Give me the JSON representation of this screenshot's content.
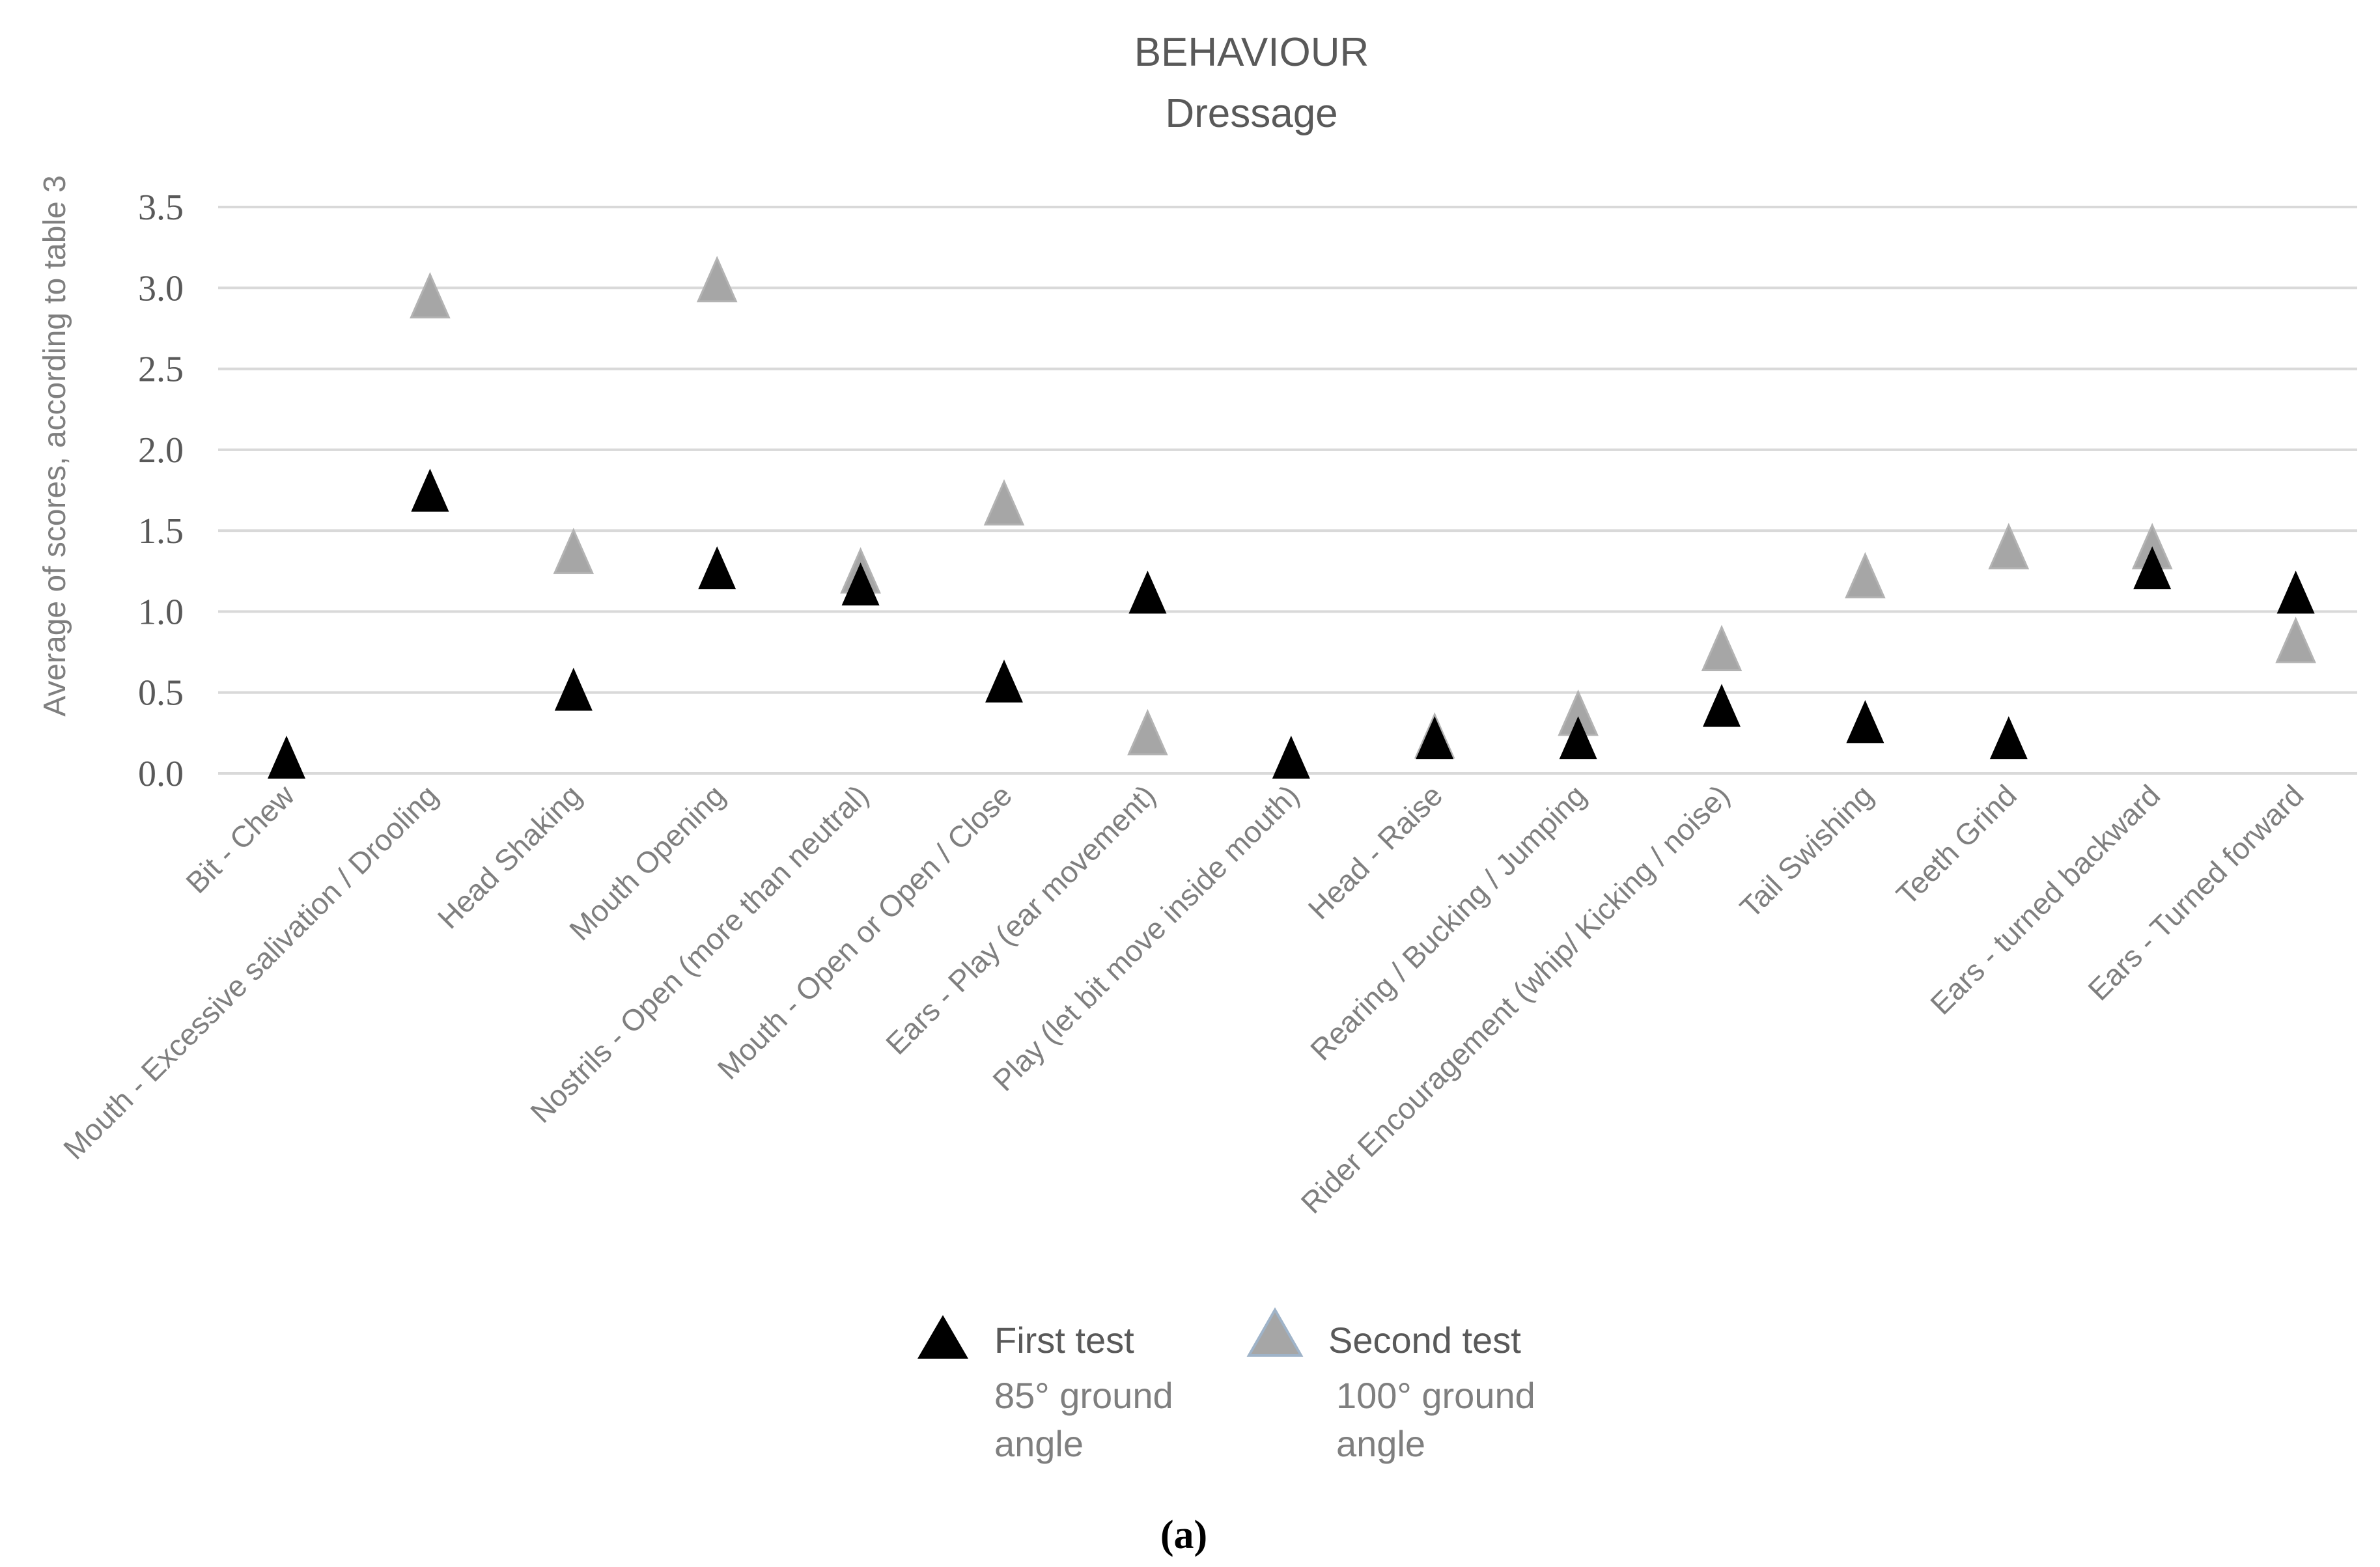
{
  "chart_data": {
    "type": "scatter",
    "title": "BEHAVIOUR",
    "subtitle": "Dressage",
    "ylabel": "Average of scores, according to table 3",
    "xlabel": "",
    "ylim": [
      0,
      3.5
    ],
    "yticks": [
      "0.0",
      "0.5",
      "1.0",
      "1.5",
      "2.0",
      "2.5",
      "3.0",
      "3.5"
    ],
    "grid": true,
    "legend_position": "bottom-center",
    "categories": [
      "Bit - Chew",
      "Mouth - Excessive salivation / Drooling",
      "Head Shaking",
      "Mouth Opening",
      "Nostrils - Open (more than neutral)",
      "Mouth - Open or Open / Close",
      "Ears - Play (ear movement)",
      "Play (let bit move inside mouth)",
      "Head - Raise",
      "Rearing / Bucking / Jumping",
      "Rider Encouragement (whip/ Kicking / noise)",
      "Tail Swishing",
      "Teeth Grind",
      "Ears - turned backward",
      "Ears - Turned forward"
    ],
    "series": [
      {
        "name": "First test",
        "note": "85° ground angle",
        "note_line1": "85° ground",
        "note_line2": "angle",
        "color": "#000000",
        "marker": "triangle",
        "values": [
          0.0,
          1.65,
          0.42,
          1.17,
          1.07,
          0.47,
          1.02,
          0.0,
          0.12,
          0.12,
          0.32,
          0.22,
          0.12,
          1.17,
          1.02
        ]
      },
      {
        "name": "Second test",
        "note": "100° ground angle",
        "note_line1": "100° ground",
        "note_line2": "angle",
        "color": "#a6a6a6",
        "marker": "triangle",
        "values": [
          null,
          2.85,
          1.27,
          2.95,
          1.15,
          1.57,
          0.15,
          null,
          0.13,
          0.27,
          0.67,
          1.12,
          1.3,
          1.3,
          0.72
        ]
      }
    ]
  },
  "caption": "(a)"
}
